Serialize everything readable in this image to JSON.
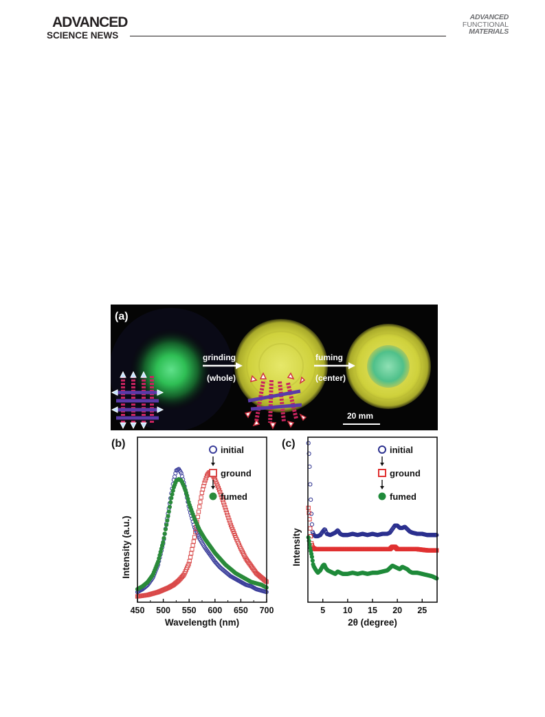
{
  "header": {
    "journal_left_line1": "ADVANCED",
    "journal_left_line2": "SCIENCE NEWS",
    "journal_right_line1": "ADVANCED",
    "journal_right_line2": "FUNCTIONAL",
    "journal_right_line3": "MATERIALS"
  },
  "panel_a": {
    "label": "(a)",
    "step1": "grinding",
    "step1_note": "(whole)",
    "step2": "fuming",
    "step2_note": "(center)",
    "scale_bar": "20 mm"
  },
  "chart_data": [
    {
      "type": "line",
      "panel_label": "(b)",
      "xlabel": "Wavelength (nm)",
      "ylabel": "Intensity (a.u.)",
      "xlim": [
        450,
        700
      ],
      "xticks": [
        "450",
        "500",
        "550",
        "600",
        "650",
        "700"
      ],
      "yticks": [],
      "legend_order_arrows": true,
      "series": [
        {
          "name": "initial",
          "color": "#3a3d9a",
          "marker": "open-circle",
          "x": [
            450,
            460,
            470,
            480,
            490,
            500,
            510,
            515,
            520,
            525,
            530,
            535,
            540,
            545,
            550,
            560,
            570,
            580,
            590,
            600,
            610,
            620,
            630,
            640,
            650,
            660,
            670,
            680,
            690,
            700
          ],
          "y": [
            0.05,
            0.07,
            0.1,
            0.15,
            0.24,
            0.39,
            0.61,
            0.72,
            0.82,
            0.89,
            0.9,
            0.87,
            0.8,
            0.72,
            0.63,
            0.5,
            0.42,
            0.36,
            0.31,
            0.26,
            0.22,
            0.19,
            0.16,
            0.14,
            0.12,
            0.1,
            0.09,
            0.07,
            0.06,
            0.05
          ]
        },
        {
          "name": "ground",
          "color": "#d94848",
          "marker": "open-square",
          "x": [
            450,
            470,
            490,
            510,
            520,
            530,
            540,
            550,
            560,
            570,
            575,
            580,
            585,
            590,
            595,
            600,
            610,
            620,
            630,
            640,
            650,
            660,
            670,
            680,
            690,
            700
          ],
          "y": [
            0.02,
            0.03,
            0.05,
            0.08,
            0.1,
            0.13,
            0.17,
            0.25,
            0.42,
            0.64,
            0.74,
            0.81,
            0.86,
            0.88,
            0.86,
            0.83,
            0.74,
            0.63,
            0.52,
            0.43,
            0.35,
            0.28,
            0.23,
            0.18,
            0.15,
            0.12
          ]
        },
        {
          "name": "fumed",
          "color": "#2a8a3a",
          "marker": "filled-circle",
          "x": [
            450,
            460,
            470,
            480,
            490,
            500,
            510,
            515,
            520,
            525,
            530,
            535,
            540,
            545,
            550,
            560,
            570,
            580,
            590,
            600,
            610,
            620,
            630,
            640,
            650,
            660,
            670,
            680,
            690,
            700
          ],
          "y": [
            0.07,
            0.09,
            0.12,
            0.17,
            0.26,
            0.4,
            0.59,
            0.69,
            0.77,
            0.82,
            0.83,
            0.82,
            0.78,
            0.73,
            0.66,
            0.56,
            0.48,
            0.42,
            0.37,
            0.32,
            0.28,
            0.24,
            0.21,
            0.18,
            0.16,
            0.14,
            0.12,
            0.11,
            0.1,
            0.08
          ]
        }
      ]
    },
    {
      "type": "line",
      "panel_label": "(c)",
      "xlabel": "2θ (degree)",
      "ylabel": "Intensity",
      "xlim": [
        2,
        28
      ],
      "xticks": [
        "5",
        "10",
        "15",
        "20",
        "25"
      ],
      "yticks": [],
      "legend_order_arrows": true,
      "series": [
        {
          "name": "initial",
          "color": "#2a2f8e",
          "marker": "open-circle",
          "x": [
            2.1,
            2.3,
            2.5,
            2.7,
            2.9,
            3.2,
            3.5,
            4,
            4.5,
            5,
            5.4,
            5.8,
            6.5,
            7,
            7.5,
            8,
            8.5,
            9,
            10,
            11,
            12,
            13,
            14,
            15,
            16,
            17,
            18,
            18.5,
            19,
            19.5,
            20,
            20.5,
            21,
            21.5,
            22,
            22.5,
            23,
            24,
            25,
            26,
            27,
            28
          ],
          "y": [
            1.0,
            0.85,
            0.6,
            0.4,
            0.25,
            0.22,
            0.21,
            0.21,
            0.22,
            0.25,
            0.27,
            0.23,
            0.22,
            0.23,
            0.24,
            0.26,
            0.23,
            0.22,
            0.22,
            0.23,
            0.22,
            0.23,
            0.22,
            0.23,
            0.22,
            0.23,
            0.23,
            0.24,
            0.27,
            0.3,
            0.3,
            0.28,
            0.28,
            0.29,
            0.27,
            0.25,
            0.24,
            0.23,
            0.23,
            0.22,
            0.22,
            0.22
          ]
        },
        {
          "name": "ground",
          "color": "#e03030",
          "marker": "open-square",
          "x": [
            2.1,
            2.3,
            2.5,
            2.7,
            3,
            3.5,
            4,
            5,
            6,
            8,
            10,
            12,
            14,
            16,
            18,
            18.5,
            19,
            19.5,
            20,
            21,
            22,
            24,
            26,
            28
          ],
          "y": [
            0.45,
            0.38,
            0.25,
            0.15,
            0.11,
            0.1,
            0.1,
            0.1,
            0.1,
            0.1,
            0.1,
            0.1,
            0.1,
            0.1,
            0.1,
            0.1,
            0.12,
            0.12,
            0.1,
            0.1,
            0.1,
            0.1,
            0.09,
            0.09
          ]
        },
        {
          "name": "fumed",
          "color": "#1f8a3a",
          "marker": "filled-circle",
          "x": [
            2.1,
            2.3,
            2.5,
            2.8,
            3.1,
            3.5,
            4,
            4.5,
            5,
            5.3,
            5.6,
            6,
            6.5,
            7,
            7.5,
            8,
            8.5,
            9,
            10,
            11,
            12,
            13,
            14,
            15,
            16,
            17,
            18,
            18.5,
            19,
            19.5,
            20,
            20.5,
            21,
            21.5,
            22,
            22.5,
            23,
            24,
            25,
            26,
            27,
            28
          ],
          "y": [
            0.3,
            0.25,
            0.2,
            0.14,
            0.06,
            0.03,
            0.0,
            0.02,
            0.06,
            0.07,
            0.04,
            0.02,
            0.01,
            0.0,
            -0.01,
            0.01,
            0.0,
            -0.01,
            -0.01,
            0.0,
            -0.01,
            0.0,
            -0.01,
            0.0,
            0.0,
            0.01,
            0.02,
            0.04,
            0.06,
            0.05,
            0.04,
            0.03,
            0.05,
            0.04,
            0.03,
            0.01,
            0.0,
            0.0,
            -0.01,
            -0.02,
            -0.03,
            -0.05
          ]
        }
      ]
    }
  ]
}
